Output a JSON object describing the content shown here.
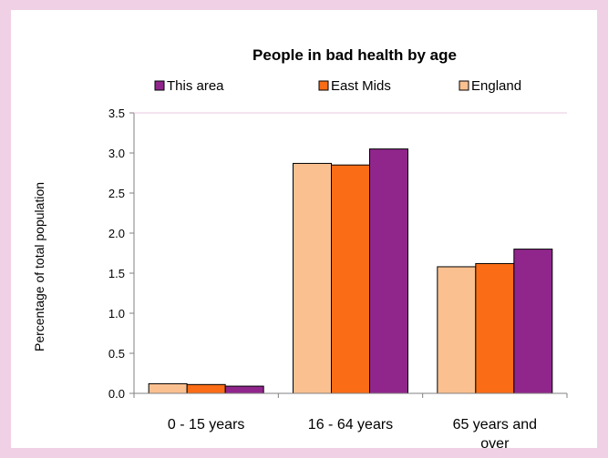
{
  "chart_data": {
    "type": "bar",
    "title": "People in bad health by age",
    "ylabel": "Percentage of total population",
    "xlabel": "",
    "categories": [
      [
        "0 - 15 years"
      ],
      [
        "16 - 64 years"
      ],
      [
        "65 years and",
        "over"
      ]
    ],
    "series": [
      {
        "name": "England",
        "color": "#fac090",
        "values": [
          0.12,
          2.87,
          1.58
        ]
      },
      {
        "name": "East Mids",
        "color": "#fa6c16",
        "values": [
          0.11,
          2.85,
          1.62
        ]
      },
      {
        "name": "This area",
        "color": "#90268c",
        "values": [
          0.09,
          3.05,
          1.8
        ]
      }
    ],
    "legend_order": [
      "This area",
      "East Mids",
      "England"
    ],
    "legend_position": "top",
    "ylim": [
      0,
      3.5
    ],
    "yticks": [
      "0.0",
      "0.5",
      "1.0",
      "1.5",
      "2.0",
      "2.5",
      "3.0",
      "3.5"
    ],
    "grid": false
  }
}
